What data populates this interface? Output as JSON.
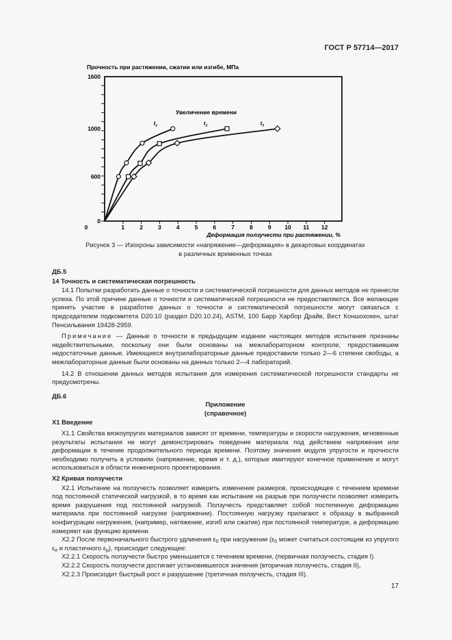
{
  "header": {
    "doc_code": "ГОСТ Р 57714—2017"
  },
  "chart_data": {
    "type": "line",
    "ylabel": "Прочность при растяжении, сжатии или изгибе, МПа",
    "xlabel": "Деформация ползучести при растяжении, %",
    "annotation": "Увеличение времени",
    "x_ticks": [
      "0",
      "1",
      "2",
      "3",
      "4",
      "5",
      "6",
      "7",
      "8",
      "9",
      "10",
      "11",
      "12"
    ],
    "y_ticks": [
      "0",
      "600",
      "1000",
      "1600"
    ],
    "xlim": [
      0,
      13
    ],
    "ylim": [
      0,
      1600
    ],
    "grid": false,
    "series": [
      {
        "name": "t1",
        "marker": "circle",
        "x": [
          0.76,
          1.19,
          2.05,
          3.72
        ],
        "y": [
          600,
          715,
          879,
          1000
        ]
      },
      {
        "name": "t2",
        "marker": "square",
        "x": [
          1.29,
          1.94,
          2.99,
          6.68
        ],
        "y": [
          600,
          711,
          875,
          1000
        ]
      },
      {
        "name": "t3",
        "marker": "diamond",
        "x": [
          1.6,
          2.4,
          3.96,
          9.43
        ],
        "y": [
          600,
          715,
          879,
          1000
        ]
      }
    ]
  },
  "figure_caption": {
    "line1": "Рисунок 3 — Изохроны зависимости «напряжение—деформация» в декартовых координатах",
    "line2": "в различных временных точках"
  },
  "db5": {
    "label": "ДБ.5",
    "section_title": "14  Точность и систематическая погрешность",
    "p14_1": "14.1 Попытки разработать данные о точности и систематической погрешности для данных методов не принесли успеха. По этой причине данные о точности и систематической погрешности не предоставляются. Все желающие принять участие в разработке данных о точности и систематической погрешности могут связаться с председателем подкомитета D20.10 (раздел D20.10.24), ASTM, 100 Барр Харбор Драйв, Вест Коншохокен, штат Пенсильвания 19428-2959.",
    "note_label": "Примечание",
    "note_text": " — Данные о точности в предыдущем издании настоящих методов испытания признаны недействительными, поскольку они были основаны на межлабораторном контроле, предоставившем недостаточные данные. Имеющиеся внутрилабораторные данные предоставили только 2—6 степени свободы, а межлабораторные данные были основаны на данных только 2—4 лабораторий.",
    "p14_2": "14.2 В отношении данных методов испытания для измерения систематической погрешности стандарты не предусмотрены."
  },
  "db6": {
    "label": "ДБ.6",
    "appendix_title": "Приложение",
    "appendix_type": "(справочное)",
    "x1_title": "X1  Введение",
    "x1_1": "X1.1 Свойства вязкоупругих материалов зависят от времени, температуры и скорости нагружения, мгновенные результаты испытания не могут демонстрировать поведение материала под действием напряжения или деформации в течение продолжительного периода времени. Поэтому значения модуля упругости и прочности необходимо получить в условиях (напряжение, время и т. д.), которые имитируют конечное применение и могут использоваться в области инженерного проектирования.",
    "x2_title": "X2  Кривая ползучести",
    "x2_1": "X2.1  Испытание на ползучесть позволяет измерить изменение размеров, происходящее с течением времени под постоянной статической нагрузкой, в то время как испытание на разрыв при ползучести позволяет измерить время разрушения под постоянной нагрузкой. Ползучесть представляет собой постепенную деформацию материала при постоянной нагрузке (напряжении). Постоянную нагрузку прилагают к образцу в выбранной конфигурации нагружения, (например, натяжение, изгиб или сжатие) при постоянной температуре, а деформацию измеряют как функцию времени.",
    "x2_2_a": "X2.2  После первоначального быстрого удлинения ε",
    "x2_2_b": " при нагружении (ε",
    "x2_2_c": " может считаться состоящим из упругого ε",
    "x2_2_d": " и пластичного ε",
    "x2_2_e": "), происходит следующее:",
    "sub0": "0",
    "sub_e": "e",
    "sub_p": "p",
    "x2_2_1": "X2.2.1  Скорость ползучести быстро уменьшается с течением времени, (первичная ползучесть, стадия I).",
    "x2_2_2": "X2.2.2  Скорость ползучести достигает установившегося значения (вторичная ползучесть, стадия II),",
    "x2_2_3": "X2.2.3  Происходит быстрый рост и разрушение (третичная ползучесть, стадия III)."
  },
  "footer": {
    "page_number": "17"
  }
}
